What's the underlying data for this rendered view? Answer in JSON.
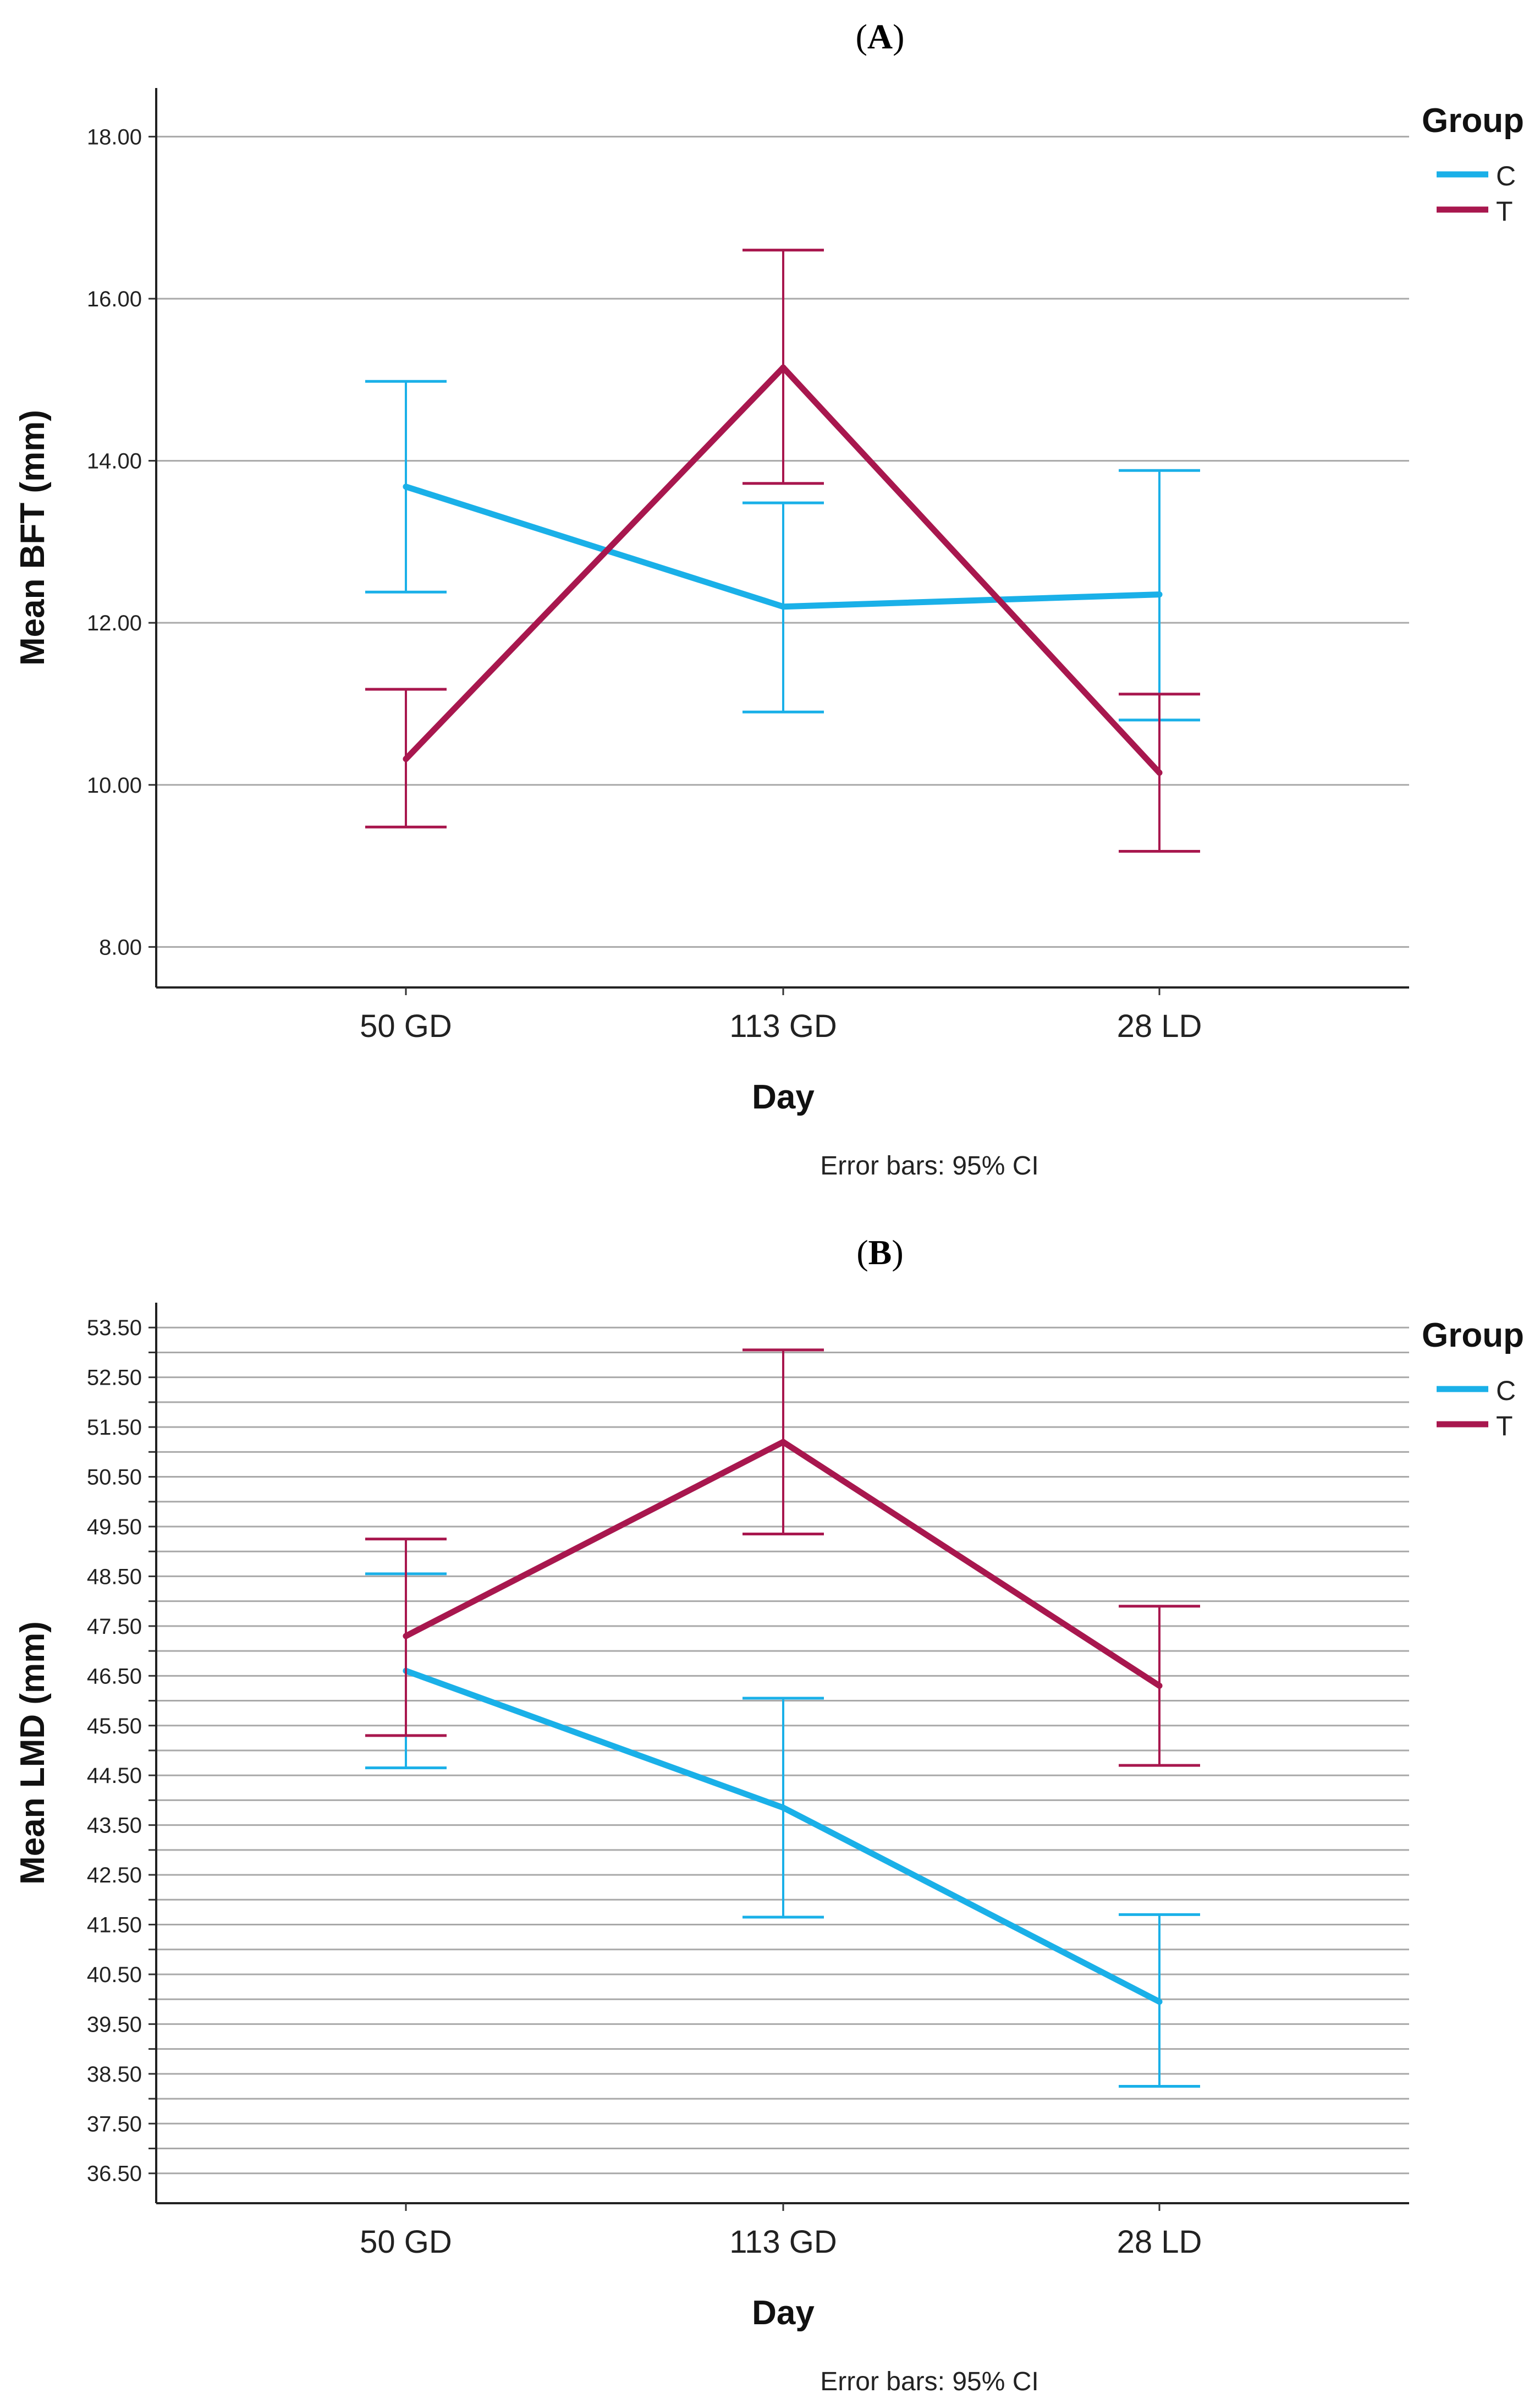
{
  "chart_data": [
    {
      "type": "line",
      "panel_label": "A",
      "title": "(A)",
      "xlabel": "Day",
      "ylabel": "Mean BFT (mm)",
      "categories": [
        "50 GD",
        "113 GD",
        "28 LD"
      ],
      "ylim": [
        7.5,
        18.6
      ],
      "yticks": [
        8.0,
        10.0,
        12.0,
        14.0,
        16.0,
        18.0
      ],
      "ytick_labels": [
        "8.00",
        "10.00",
        "12.00",
        "14.00",
        "16.00",
        "18.00"
      ],
      "grid": true,
      "legend": {
        "title": "Group",
        "placement": "top-right"
      },
      "footnote": "Error bars: 95% CI",
      "series": [
        {
          "name": "C",
          "color": "#1ab0e8",
          "values": [
            13.68,
            12.2,
            12.35
          ],
          "ci_low": [
            12.38,
            10.9,
            10.8
          ],
          "ci_high": [
            14.98,
            13.48,
            13.88
          ]
        },
        {
          "name": "T",
          "color": "#a8174e",
          "values": [
            10.32,
            15.15,
            10.15
          ],
          "ci_low": [
            9.48,
            13.72,
            9.18
          ],
          "ci_high": [
            11.18,
            16.6,
            11.12
          ]
        }
      ]
    },
    {
      "type": "line",
      "panel_label": "B",
      "title": "(B)",
      "xlabel": "Day",
      "ylabel": "Mean LMD (mm)",
      "categories": [
        "50 GD",
        "113 GD",
        "28 LD"
      ],
      "ylim": [
        35.9,
        54.0
      ],
      "yticks": [
        36.5,
        37.0,
        37.5,
        38.0,
        38.5,
        39.0,
        39.5,
        40.0,
        40.5,
        41.0,
        41.5,
        42.0,
        42.5,
        43.0,
        43.5,
        44.0,
        44.5,
        45.0,
        45.5,
        46.0,
        46.5,
        47.0,
        47.5,
        48.0,
        48.5,
        49.0,
        49.5,
        50.0,
        50.5,
        51.0,
        51.5,
        52.0,
        52.5,
        53.0,
        53.5
      ],
      "ytick_labels": [
        "36.50",
        "",
        "37.50",
        "",
        "38.50",
        "",
        "39.50",
        "",
        "40.50",
        "",
        "41.50",
        "",
        "42.50",
        "",
        "43.50",
        "",
        "44.50",
        "",
        "45.50",
        "",
        "46.50",
        "",
        "47.50",
        "",
        "48.50",
        "",
        "49.50",
        "",
        "50.50",
        "",
        "51.50",
        "",
        "52.50",
        "",
        "53.50"
      ],
      "grid": true,
      "legend": {
        "title": "Group",
        "placement": "top-right"
      },
      "footnote": "Error bars: 95% CI",
      "series": [
        {
          "name": "C",
          "color": "#1ab0e8",
          "values": [
            46.6,
            43.85,
            39.95
          ],
          "ci_low": [
            44.65,
            41.65,
            38.25
          ],
          "ci_high": [
            48.55,
            46.05,
            41.7
          ]
        },
        {
          "name": "T",
          "color": "#a8174e",
          "values": [
            47.3,
            51.2,
            46.3
          ],
          "ci_low": [
            45.3,
            49.35,
            44.7
          ],
          "ci_high": [
            49.25,
            53.05,
            47.9
          ]
        }
      ]
    }
  ]
}
